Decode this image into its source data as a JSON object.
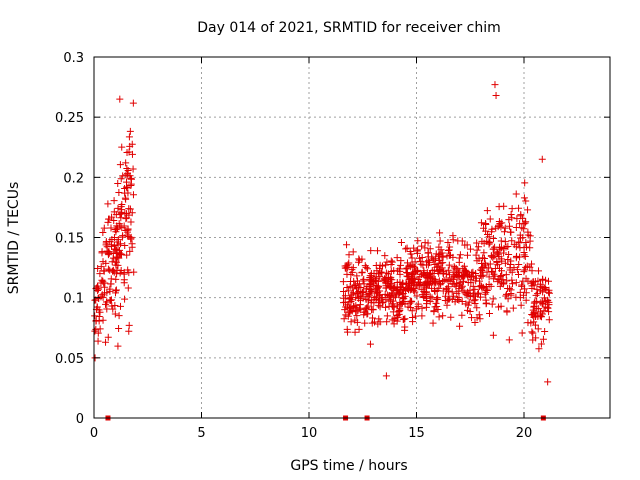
{
  "chart_data": {
    "type": "scatter",
    "title": "Day 014 of 2021, SRMTID for receiver chim",
    "xlabel": "GPS time / hours",
    "ylabel": "SRMTID / TECUs",
    "xlim": [
      0,
      24
    ],
    "ylim": [
      0,
      0.3
    ],
    "xticks": [
      0,
      5,
      10,
      15,
      20
    ],
    "xtick_labels": [
      "0",
      "5",
      "10",
      "15",
      "20"
    ],
    "yticks": [
      0,
      0.05,
      0.1,
      0.15,
      0.2,
      0.25,
      0.3
    ],
    "ytick_labels": [
      "0",
      "0.05",
      "0.1",
      "0.15",
      "0.2",
      "0.25",
      "0.3"
    ],
    "grid": true,
    "marker": "+",
    "color": "#e00000",
    "series": [
      {
        "name": "SRMTID",
        "clusters": [
          {
            "x_range": [
              0,
              1.85
            ],
            "y_band": [
              0.05,
              0.265
            ],
            "n": 220,
            "envelope": "rising"
          },
          {
            "x_range": [
              11.6,
              21.2
            ],
            "y_band": [
              0.03,
              0.28
            ],
            "n": 950,
            "envelope": "band"
          }
        ],
        "highlights": [
          {
            "x": 18.65,
            "y": 0.277
          },
          {
            "x": 18.7,
            "y": 0.268
          },
          {
            "x": 20.85,
            "y": 0.215
          },
          {
            "x": 21.1,
            "y": 0.03
          },
          {
            "x": 1.2,
            "y": 0.265
          },
          {
            "x": 0.05,
            "y": 0.05
          },
          {
            "x": 13.6,
            "y": 0.035
          }
        ]
      }
    ],
    "zero_markers_x": [
      0.65,
      11.7,
      12.7,
      20.9
    ]
  }
}
